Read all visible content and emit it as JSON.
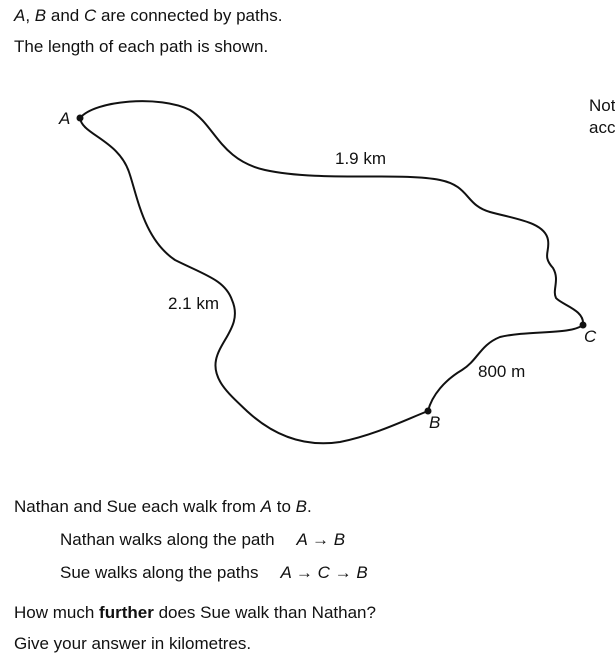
{
  "intro": {
    "line1_rest": " are connected by paths.",
    "line2": "The length of each path is shown."
  },
  "points": {
    "a": "A",
    "b": "B",
    "c": "C"
  },
  "note": {
    "line1": "Not",
    "line2": "acc"
  },
  "paths": {
    "ab": "2.1 km",
    "ac": "1.9 km",
    "bc": "800 m"
  },
  "question": {
    "intro": "Nathan and Sue each walk from",
    "to": "to",
    "nathan_label": "Nathan walks along the path",
    "nathan_route": "A → B",
    "sue_label": "Sue walks along the paths",
    "sue_route": "A → C → B",
    "ask_pre": "How much",
    "ask_bold": "further",
    "ask_post": "does Sue walk than Nathan?",
    "instruction": "Give your answer in kilometres."
  }
}
